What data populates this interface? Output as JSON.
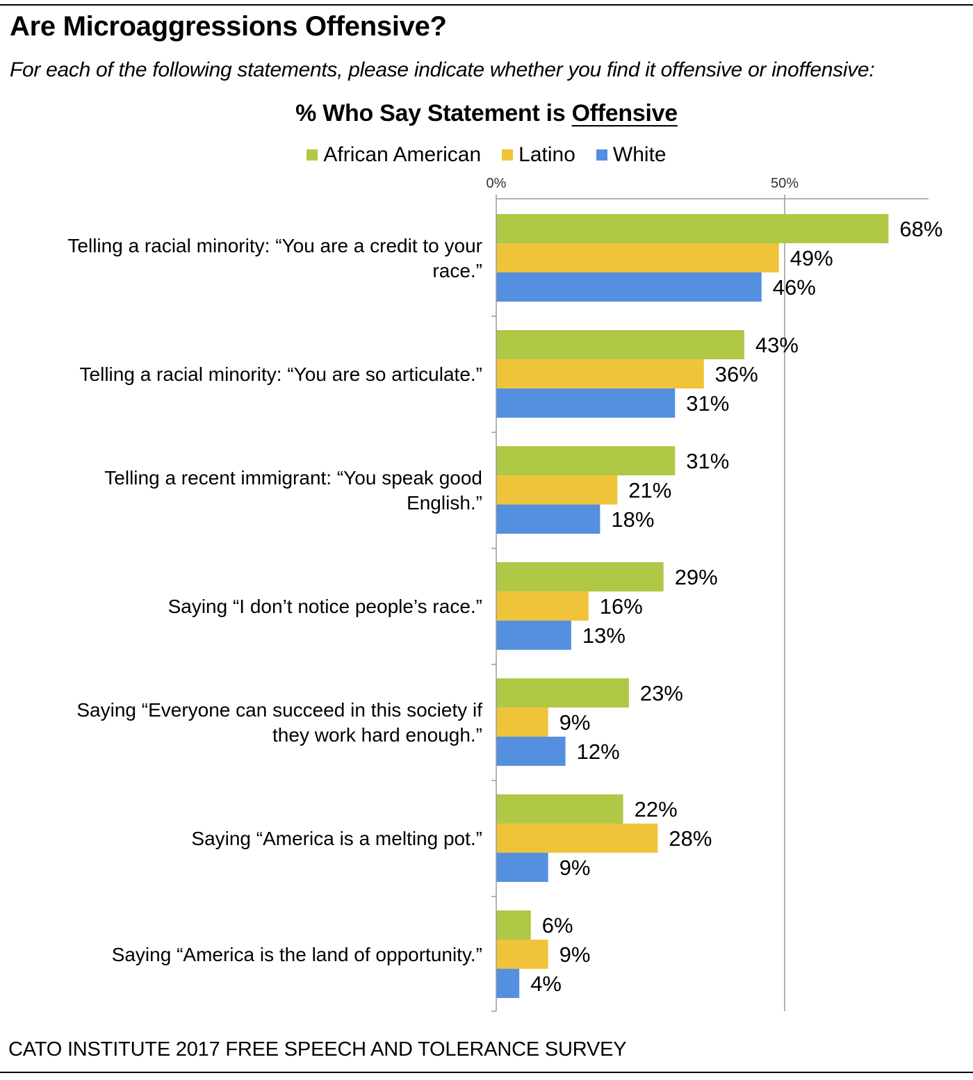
{
  "header": {
    "title": "Are Microaggressions Offensive?",
    "subtitle": "For each of the following statements, please indicate whether you find it offensive or inoffensive:"
  },
  "footer": {
    "source": "CATO INSTITUTE 2017 FREE SPEECH AND TOLERANCE SURVEY"
  },
  "chart_data": {
    "type": "bar",
    "orientation": "horizontal",
    "title_prefix": "% Who Say Statement is ",
    "title_emphasis": "Offensive",
    "categories": [
      "Telling a racial minority: “You are a credit to your race.”",
      "Telling a racial minority: “You are so articulate.”",
      "Telling a recent immigrant: “You speak good English.”",
      "Saying “I don’t notice people’s race.”",
      "Saying “Everyone can succeed in this society if they work hard enough.”",
      "Saying “America is a melting pot.”",
      "Saying “America is the land of opportunity.”"
    ],
    "category_lines": [
      [
        "Telling a racial minority: “You are a credit to your",
        "race.”"
      ],
      [
        "Telling a racial minority: “You are so articulate.”"
      ],
      [
        "Telling a recent immigrant: “You speak good",
        "English.”"
      ],
      [
        "Saying “I don’t notice people’s race.”"
      ],
      [
        "Saying “Everyone can succeed in this society if",
        "they work hard enough.”"
      ],
      [
        "Saying “America is a melting pot.”"
      ],
      [
        "Saying “America is the land of opportunity.”"
      ]
    ],
    "series": [
      {
        "name": "African American",
        "color": "#afc846",
        "values": [
          68,
          43,
          31,
          29,
          23,
          22,
          6
        ]
      },
      {
        "name": "Latino",
        "color": "#f0c43a",
        "values": [
          49,
          36,
          21,
          16,
          9,
          28,
          9
        ]
      },
      {
        "name": "White",
        "color": "#558fe0",
        "values": [
          46,
          31,
          18,
          13,
          12,
          9,
          4
        ]
      }
    ],
    "value_suffix": "%",
    "xlim": [
      0,
      75
    ],
    "xticks": [
      0,
      50
    ],
    "xtick_labels": [
      "0%",
      "50%"
    ],
    "legend_position": "top",
    "grid": "vertical line at 50%"
  }
}
